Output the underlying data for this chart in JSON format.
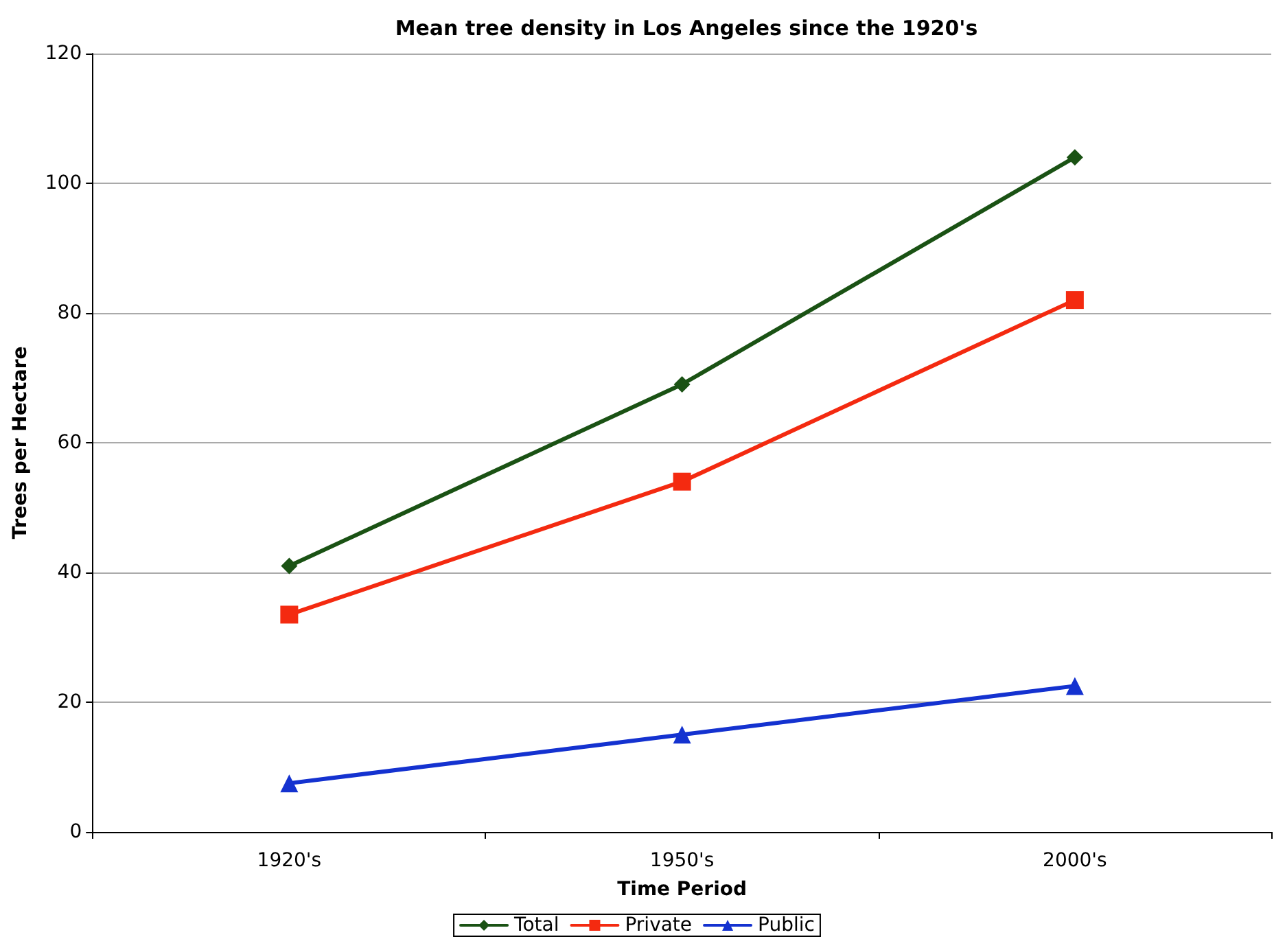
{
  "chart_data": {
    "type": "line",
    "title": "Mean tree density in Los Angeles since the 1920's",
    "xlabel": "Time Period",
    "ylabel": "Trees per Hectare",
    "categories": [
      "1920's",
      "1950's",
      "2000's"
    ],
    "series": [
      {
        "name": "Total",
        "color": "#1a5214",
        "marker": "diamond",
        "values": [
          41,
          69,
          104
        ]
      },
      {
        "name": "Private",
        "color": "#f42a10",
        "marker": "square",
        "values": [
          33.5,
          54,
          82
        ]
      },
      {
        "name": "Public",
        "color": "#1432d0",
        "marker": "triangle",
        "values": [
          7.5,
          15,
          22.5
        ]
      }
    ],
    "ylim": [
      0,
      120
    ],
    "yticks": [
      0,
      20,
      40,
      60,
      80,
      100,
      120
    ],
    "grid": "y",
    "legend": "bottom",
    "line_style": "solid"
  }
}
